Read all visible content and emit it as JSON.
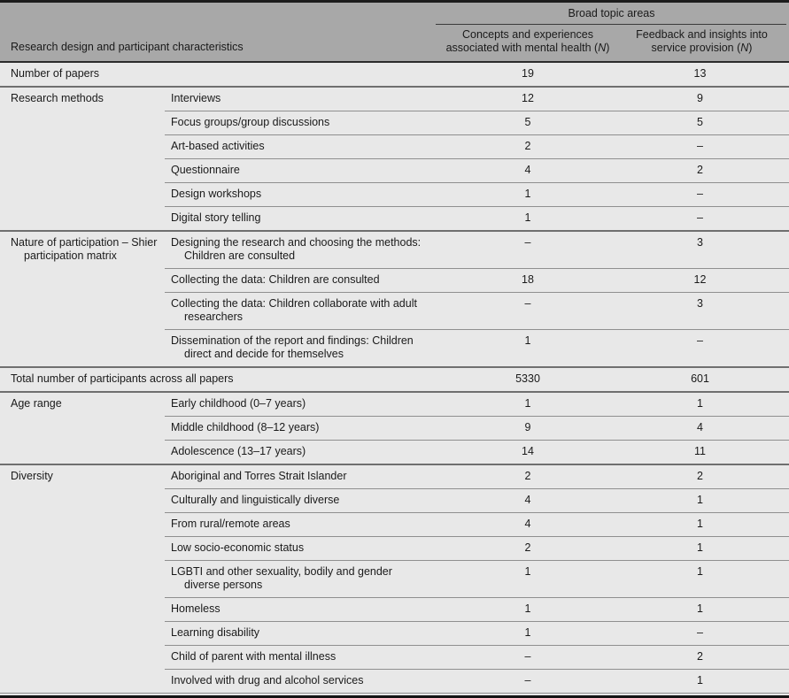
{
  "table": {
    "header": {
      "col1_label": "Research design and participant characteristics",
      "span_label": "Broad topic areas",
      "value_cols": [
        {
          "label": "Concepts and experiences associated with mental health",
          "open": " (",
          "n": "N",
          "close": ")"
        },
        {
          "label": "Feedback and insights into service provision",
          "open": " (",
          "n": "N",
          "close": ")"
        }
      ]
    },
    "groups": [
      {
        "label": "Number of papers",
        "rows": [
          {
            "sublabel": "",
            "v1": "19",
            "v2": "13"
          }
        ]
      },
      {
        "label": "Research methods",
        "rows": [
          {
            "sublabel": "Interviews",
            "v1": "12",
            "v2": "9"
          },
          {
            "sublabel": "Focus groups/group discussions",
            "v1": "5",
            "v2": "5"
          },
          {
            "sublabel": "Art-based activities",
            "v1": "2",
            "v2": "–"
          },
          {
            "sublabel": "Questionnaire",
            "v1": "4",
            "v2": "2"
          },
          {
            "sublabel": "Design workshops",
            "v1": "1",
            "v2": "–"
          },
          {
            "sublabel": "Digital story telling",
            "v1": "1",
            "v2": "–"
          }
        ]
      },
      {
        "label": "Nature of participation – Shier participation matrix",
        "rows": [
          {
            "sublabel": "Designing the research and choosing the methods: Children are consulted",
            "v1": "–",
            "v2": "3"
          },
          {
            "sublabel": "Collecting the data: Children are consulted",
            "v1": "18",
            "v2": "12"
          },
          {
            "sublabel": "Collecting the data: Children collaborate with adult researchers",
            "v1": "–",
            "v2": "3"
          },
          {
            "sublabel": "Dissemination of the report and findings: Children direct and decide for themselves",
            "v1": "1",
            "v2": "–"
          }
        ]
      },
      {
        "label": "Total number of participants across all papers",
        "rows": [
          {
            "sublabel": "",
            "v1": "5330",
            "v2": "601"
          }
        ]
      },
      {
        "label": "Age range",
        "rows": [
          {
            "sublabel": "Early childhood (0–7 years)",
            "v1": "1",
            "v2": "1"
          },
          {
            "sublabel": "Middle childhood (8–12 years)",
            "v1": "9",
            "v2": "4"
          },
          {
            "sublabel": "Adolescence (13–17 years)",
            "v1": "14",
            "v2": "11"
          }
        ]
      },
      {
        "label": "Diversity",
        "rows": [
          {
            "sublabel": "Aboriginal and Torres Strait Islander",
            "v1": "2",
            "v2": "2"
          },
          {
            "sublabel": "Culturally and linguistically diverse",
            "v1": "4",
            "v2": "1"
          },
          {
            "sublabel": "From rural/remote areas",
            "v1": "4",
            "v2": "1"
          },
          {
            "sublabel": "Low socio-economic status",
            "v1": "2",
            "v2": "1"
          },
          {
            "sublabel": "LGBTI and other sexuality, bodily and gender diverse persons",
            "v1": "1",
            "v2": "1"
          },
          {
            "sublabel": "Homeless",
            "v1": "1",
            "v2": "1"
          },
          {
            "sublabel": "Learning disability",
            "v1": "1",
            "v2": "–"
          },
          {
            "sublabel": "Child of parent with mental illness",
            "v1": "–",
            "v2": "2"
          },
          {
            "sublabel": "Involved with drug and alcohol services",
            "v1": "–",
            "v2": "1"
          }
        ]
      }
    ]
  }
}
